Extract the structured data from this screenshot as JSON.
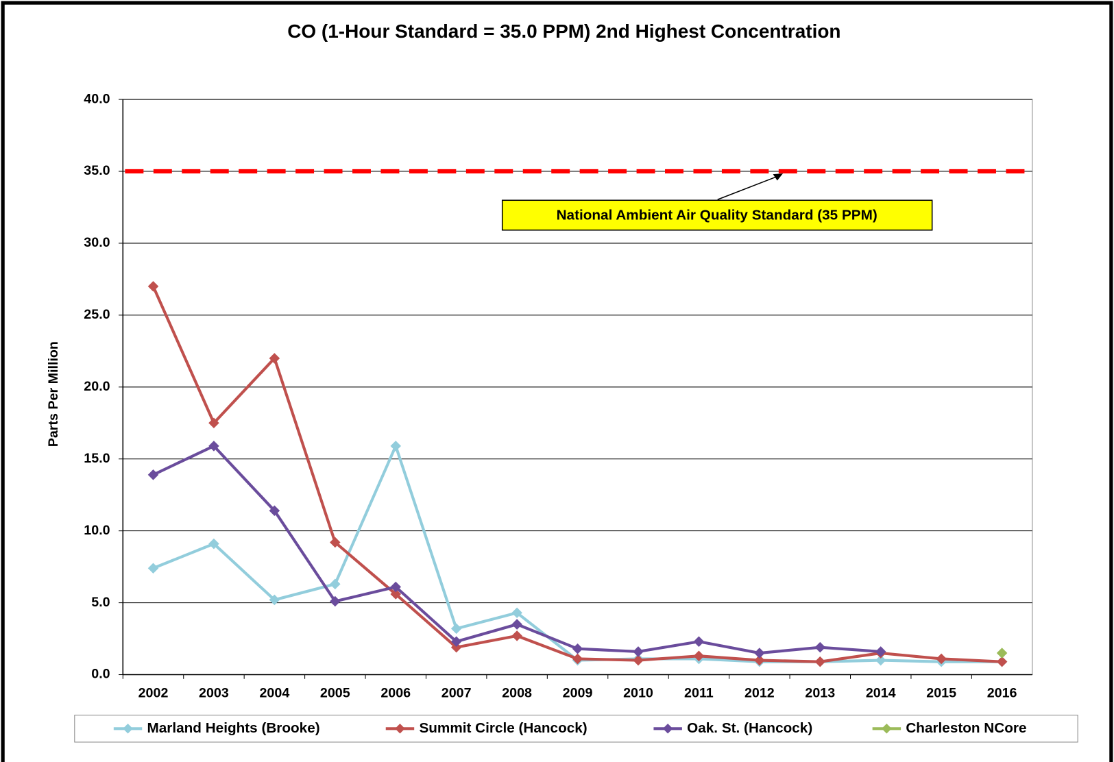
{
  "chart_data": {
    "type": "line",
    "title": "CO (1-Hour Standard = 35.0 PPM) 2nd Highest Concentration",
    "y_label": "Parts Per Million",
    "categories": [
      "2002",
      "2003",
      "2004",
      "2005",
      "2006",
      "2007",
      "2008",
      "2009",
      "2010",
      "2011",
      "2012",
      "2013",
      "2014",
      "2015",
      "2016"
    ],
    "series": [
      {
        "name": "Marland Heights (Brooke)",
        "color": "#92cddc",
        "values": [
          7.4,
          9.1,
          5.2,
          6.3,
          15.9,
          3.2,
          4.3,
          1.0,
          1.1,
          1.1,
          0.9,
          0.9,
          1.0,
          0.9,
          0.9
        ]
      },
      {
        "name": "Summit Circle (Hancock)",
        "color": "#c0504d",
        "values": [
          27.0,
          17.5,
          22.0,
          9.2,
          5.6,
          1.9,
          2.7,
          1.1,
          1.0,
          1.3,
          1.0,
          0.9,
          1.5,
          1.1,
          0.9
        ]
      },
      {
        "name": "Oak. St. (Hancock)",
        "color": "#6a4c9c",
        "values": [
          13.9,
          15.9,
          11.4,
          5.1,
          6.1,
          2.3,
          3.5,
          1.8,
          1.6,
          2.3,
          1.5,
          1.9,
          1.6,
          null,
          null
        ]
      },
      {
        "name": "Charleston NCore",
        "color": "#9bbb59",
        "values": [
          null,
          null,
          null,
          null,
          null,
          null,
          null,
          null,
          null,
          null,
          null,
          null,
          null,
          null,
          1.5
        ]
      }
    ],
    "ylim": [
      0,
      40
    ],
    "yticks": [
      {
        "value": 0,
        "label": "0.0"
      },
      {
        "value": 5,
        "label": "5.0"
      },
      {
        "value": 10,
        "label": "10.0"
      },
      {
        "value": 15,
        "label": "15.0"
      },
      {
        "value": 20,
        "label": "20.0"
      },
      {
        "value": 25,
        "label": "25.0"
      },
      {
        "value": 30,
        "label": "30.0"
      },
      {
        "value": 35,
        "label": "35.0"
      },
      {
        "value": 40,
        "label": "40.0"
      }
    ],
    "grid": true,
    "reference_line": {
      "value": 35,
      "color": "#ff0000"
    },
    "annotation": "National Ambient Air Quality Standard (35 PPM)",
    "legend": "bottom"
  }
}
